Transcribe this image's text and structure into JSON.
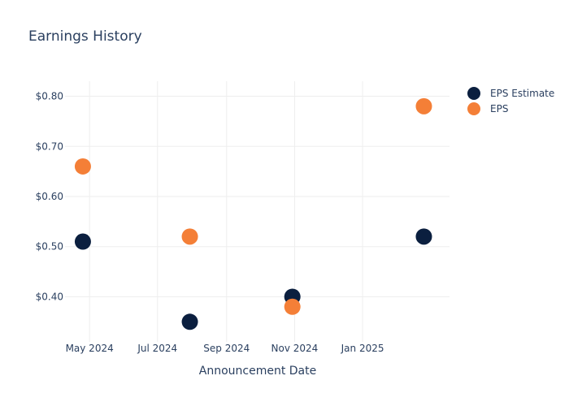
{
  "chart_data": {
    "type": "scatter",
    "title": "Earnings History",
    "xlabel": "Announcement Date",
    "ylabel": "",
    "x_ticks": [
      "May 2024",
      "Jul 2024",
      "Sep 2024",
      "Nov 2024",
      "Jan 2025"
    ],
    "y_ticks": [
      "$0.80",
      "$0.70",
      "$0.60",
      "$0.50",
      "$0.40"
    ],
    "ylim": [
      0.31,
      0.83
    ],
    "xlim": [
      "2024-04-09",
      "2025-03-20"
    ],
    "x": [
      "2024-04-25",
      "2024-07-30",
      "2024-10-30",
      "2025-02-25"
    ],
    "grid": true,
    "legend_position": "top-right",
    "series": [
      {
        "name": "EPS Estimate",
        "color": "#0b1f3f",
        "values": [
          0.51,
          0.35,
          0.4,
          0.52
        ]
      },
      {
        "name": "EPS",
        "color": "#f47f37",
        "values": [
          0.66,
          0.52,
          0.38,
          0.78
        ]
      }
    ]
  }
}
